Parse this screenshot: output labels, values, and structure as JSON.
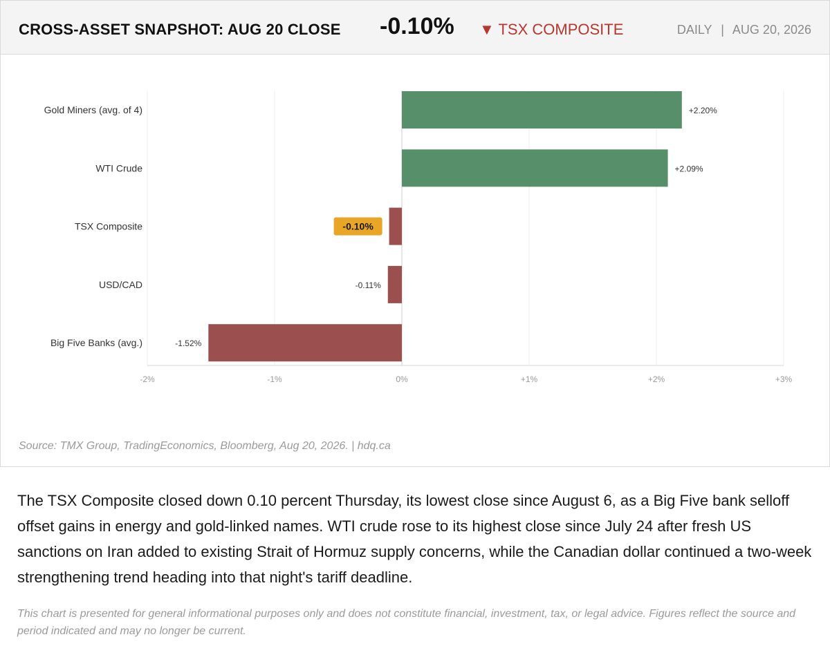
{
  "header": {
    "title": "CROSS-ASSET SNAPSHOT: AUG 20 CLOSE",
    "value": "-0.10%",
    "index_label": "▼ TSX COMPOSITE",
    "frequency": "DAILY",
    "separator": "|",
    "date": "AUG 20, 2026"
  },
  "source": "Source: TMX Group, TradingEconomics, Bloomberg, Aug 20, 2026.  |  hdq.ca",
  "body_text": "The TSX Composite closed down 0.10 percent Thursday, its lowest close since August 6, as a Big Five bank selloff offset gains in energy and gold-linked names. WTI crude rose to its highest close since July 24 after fresh US sanctions on Iran added to existing Strait of Hormuz supply concerns, while the Canadian dollar continued a two-week strengthening trend heading into that night's tariff deadline.",
  "disclaimer": "This chart is presented for general informational purposes only and does not constitute financial, investment, tax, or legal advice. Figures reflect the source and period indicated and may no longer be current.",
  "chart_data": {
    "type": "bar",
    "orientation": "horizontal",
    "title": "",
    "xlabel": "",
    "ylabel": "",
    "categories": [
      "Gold Miners (avg. of 4)",
      "WTI Crude",
      "TSX Composite",
      "USD/CAD",
      "Big Five Banks (avg.)"
    ],
    "values": [
      2.2,
      2.09,
      -0.1,
      -0.11,
      -1.52
    ],
    "value_labels": [
      "+2.20%",
      "+2.09%",
      "-0.10%",
      "-0.11%",
      "-1.52%"
    ],
    "highlight_category": "TSX Composite",
    "xlim": [
      -2,
      3
    ],
    "xticks": [
      -2,
      -1,
      0,
      1,
      2,
      3
    ],
    "xtick_labels": [
      "-2%",
      "-1%",
      "0%",
      "+1%",
      "+2%",
      "+3%"
    ],
    "grid": true,
    "colors": {
      "positive": "#578f6b",
      "negative": "#9b4f4f",
      "highlight_badge": "#e8a526"
    }
  }
}
